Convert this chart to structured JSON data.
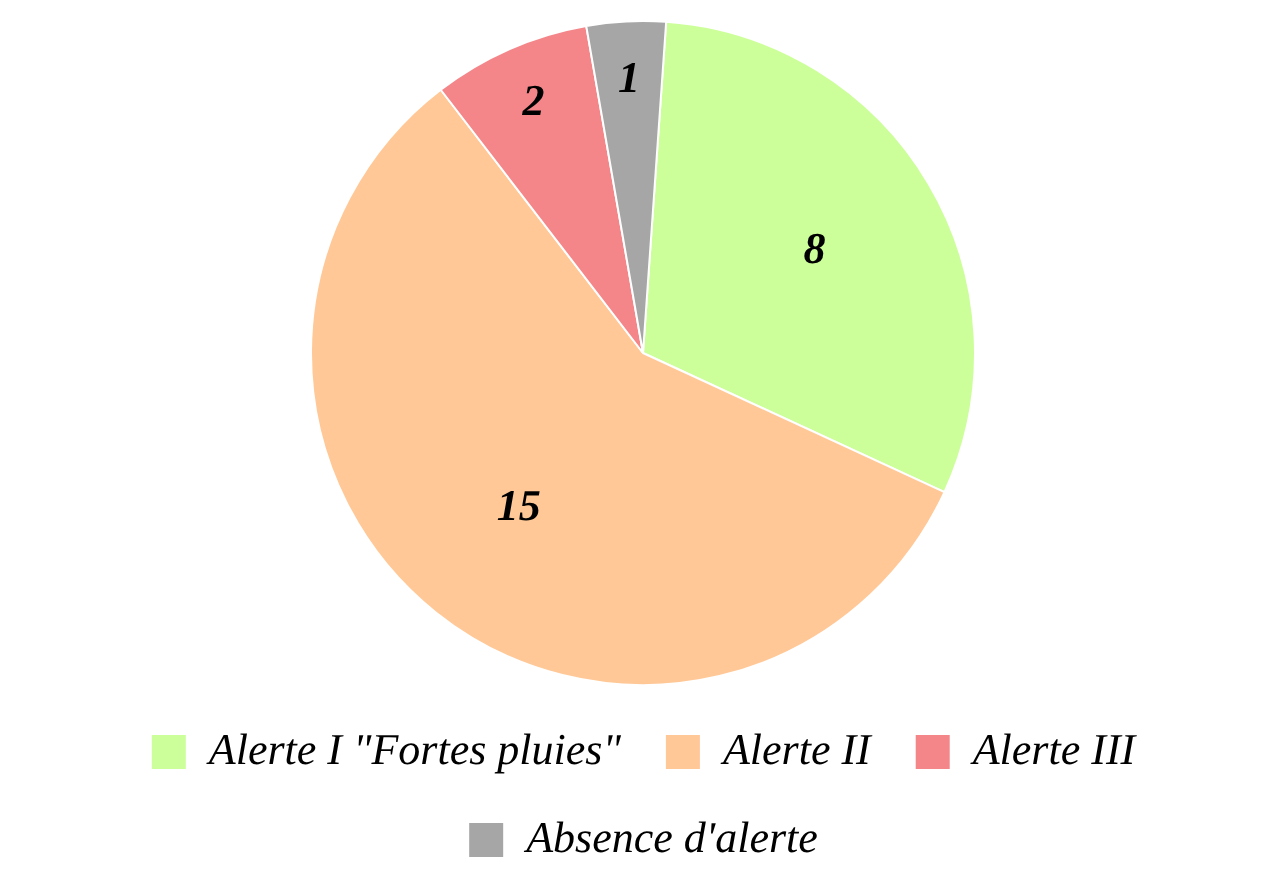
{
  "chart_data": {
    "type": "pie",
    "categories": [
      "Alerte I \"Fortes pluies\"",
      "Alerte II",
      "Alerte III",
      "Absence d'alerte"
    ],
    "values": [
      8,
      15,
      2,
      1
    ],
    "colors": [
      "#ccff99",
      "#ffc896",
      "#f4868a",
      "#a6a6a6"
    ],
    "data_labels": true,
    "legend": "bottom"
  }
}
